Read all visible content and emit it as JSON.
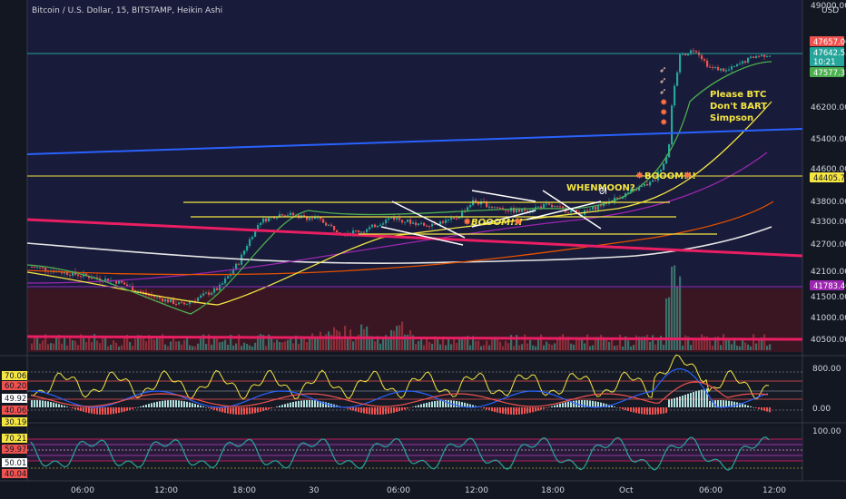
{
  "header": {
    "title": "Bitcoin / U.S. Dollar, 15, BITSTAMP, Heikin Ashi",
    "currency": "USD"
  },
  "colors": {
    "background": "#131722",
    "price_pane": "#181b39",
    "volume_zone": "#3a1622",
    "up": "#26a69a",
    "down": "#ef5350",
    "hline": "#f5e642",
    "pink": "#e91e63",
    "blue": "#2962ff",
    "white": "#e6e6e6",
    "purple": "#9c27b0",
    "orange": "#f57c00",
    "green_ma": "#4caf50"
  },
  "chart_data": {
    "type": "candlestick",
    "ylim": [
      40000,
      49000
    ],
    "y_ticks": [
      "49000.00",
      "46200.00",
      "45400.00",
      "44600.00",
      "43800.00",
      "43300.00",
      "42700.00",
      "42100.00",
      "41500.00",
      "41000.00",
      "40500.00"
    ],
    "x_ticks": [
      "06:00",
      "12:00",
      "18:00",
      "30",
      "06:00",
      "12:00",
      "18:00",
      "Oct",
      "06:00",
      "12:00"
    ],
    "price_tags": [
      {
        "label": "47657.00",
        "color": "#ef5350"
      },
      {
        "label": "47642.55",
        "color": "#26a69a"
      },
      {
        "label": "10:21",
        "color": "#26a69a"
      },
      {
        "label": "47577.37",
        "color": "#4caf50"
      },
      {
        "label": "44405.75",
        "color": "#f5e642"
      },
      {
        "label": "41783.40",
        "color": "#9c27b0"
      }
    ],
    "annotations": [
      "Please BTC",
      "Don't BART",
      "Simpson",
      "BOOOM!!!",
      "BOOOM!!!",
      "WHENMOON?"
    ],
    "osc1": {
      "ylim": [
        -400,
        1000
      ],
      "tick_labels": [
        "800.00",
        "0.00"
      ],
      "level_tags": [
        {
          "label": "70.06",
          "color": "#f5e642"
        },
        {
          "label": "60.20",
          "color": "#ef5350"
        },
        {
          "label": "49.92",
          "color": "#ffffff"
        },
        {
          "label": "40.06",
          "color": "#ef5350"
        },
        {
          "label": "30.19",
          "color": "#f5e642"
        }
      ]
    },
    "osc2": {
      "tick_label": "100.00",
      "level_tags": [
        {
          "label": "70.21",
          "color": "#f5e642"
        },
        {
          "label": "59.97",
          "color": "#ef5350"
        },
        {
          "label": "50.01",
          "color": "#ffffff"
        },
        {
          "label": "40.04",
          "color": "#ef5350"
        }
      ]
    }
  }
}
